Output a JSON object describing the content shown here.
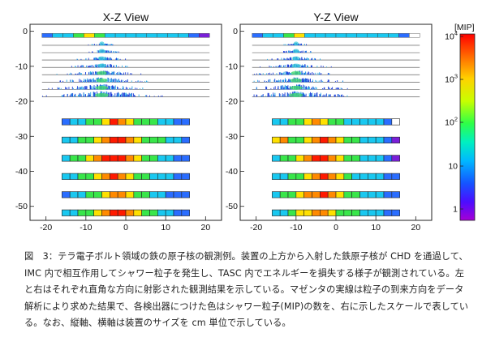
{
  "panels": [
    {
      "title": "X-Z View",
      "x_ticks": [
        "-20",
        "-10",
        "0",
        "10",
        "20"
      ],
      "y_ticks": [
        "0",
        "-10",
        "-20",
        "-30",
        "-40",
        "-50"
      ]
    },
    {
      "title": "Y-Z View",
      "x_ticks": [
        "-20",
        "-10",
        "0",
        "10",
        "20"
      ],
      "y_ticks": [
        "0",
        "-10",
        "-20",
        "-30",
        "-40",
        "-50"
      ]
    }
  ],
  "colorbar": {
    "unit": "[MIP]",
    "tick_labels": [
      {
        "base": "10",
        "exp": "4"
      },
      {
        "base": "10",
        "exp": "3"
      },
      {
        "base": "10",
        "exp": "2"
      },
      {
        "base": "10",
        "exp": ""
      },
      {
        "base": "1",
        "exp": ""
      }
    ],
    "colors": [
      "#ff0000",
      "#ff6600",
      "#ffcc00",
      "#ccff00",
      "#33ff33",
      "#00ff99",
      "#00ccff",
      "#0066ff",
      "#3300ff",
      "#9900cc"
    ]
  },
  "caption": "図　3：テラ電子ボルト領域の鉄の原子核の観測例。装置の上方から入射した鉄原子核が CHD を通過して、IMC 内で相互作用してシャワー粒子を発生し、TASC 内でエネルギーを損失する様子が観測されている。左と右はそれぞれ直角な方向に射影された観測結果を示している。マゼンタの実線は粒子の到来方向をデータ解析により求めた結果で、各検出器につけた色はシャワー粒子(MIP)の数を、右に示したスケールで表している。なお、縦軸、横軸は装置のサイズを cm 単位で示している。",
  "chart_data": [
    {
      "type": "heatmap",
      "title": "X-Z View",
      "xlim": [
        -24,
        24
      ],
      "ylim": [
        -54,
        2
      ],
      "x_ticks": [
        -20,
        -10,
        0,
        10,
        20
      ],
      "y_ticks": [
        0,
        -10,
        -20,
        -30,
        -40,
        -50
      ],
      "chd_row_colors": [
        "b",
        "c",
        "c",
        "g",
        "y",
        "g",
        "c",
        "c",
        "c",
        "c",
        "c",
        "c",
        "c",
        "c",
        "b",
        "v"
      ],
      "tasc_rows": [
        [
          "b",
          "c",
          "c",
          "g",
          "g",
          "y",
          "r",
          "o",
          "y",
          "g",
          "g",
          "g",
          "c",
          "c",
          "b",
          "b"
        ],
        [
          "c",
          "c",
          "g",
          "g",
          "y",
          "o",
          "r",
          "r",
          "o",
          "y",
          "g",
          "g",
          "g",
          "c",
          "c",
          "b"
        ],
        [
          "c",
          "g",
          "g",
          "y",
          "o",
          "r",
          "r",
          "r",
          "o",
          "y",
          "g",
          "g",
          "c",
          "c",
          "b",
          "b"
        ],
        [
          "c",
          "c",
          "g",
          "g",
          "y",
          "o",
          "r",
          "o",
          "y",
          "g",
          "g",
          "c",
          "c",
          "c",
          "b",
          "b"
        ],
        [
          "b",
          "c",
          "c",
          "g",
          "g",
          "y",
          "o",
          "o",
          "y",
          "g",
          "g",
          "c",
          "c",
          "b",
          "b",
          "b"
        ],
        [
          "c",
          "c",
          "g",
          "g",
          "y",
          "o",
          "r",
          "r",
          "o",
          "y",
          "g",
          "g",
          "c",
          "c",
          "b",
          "b"
        ]
      ]
    },
    {
      "type": "heatmap",
      "title": "Y-Z View",
      "xlim": [
        -24,
        24
      ],
      "ylim": [
        -54,
        2
      ],
      "x_ticks": [
        -20,
        -10,
        0,
        10,
        20
      ],
      "y_ticks": [
        0,
        -10,
        -20,
        -30,
        -40,
        -50
      ],
      "chd_row_colors": [
        "b",
        "c",
        "c",
        "g",
        "y",
        "c",
        "c",
        "c",
        "c",
        "c",
        "c",
        "c",
        "c",
        "c",
        "b",
        "w"
      ],
      "tasc_rows": [
        [
          "c",
          "c",
          "g",
          "g",
          "y",
          "o",
          "y",
          "g",
          "g",
          "c",
          "c",
          "c",
          "c",
          "c",
          "b",
          "w"
        ],
        [
          "y",
          "o",
          "g",
          "g",
          "y",
          "o",
          "r",
          "o",
          "y",
          "g",
          "g",
          "c",
          "c",
          "c",
          "b",
          "v"
        ],
        [
          "c",
          "g",
          "g",
          "y",
          "o",
          "r",
          "r",
          "o",
          "y",
          "g",
          "g",
          "c",
          "c",
          "c",
          "b",
          "v"
        ],
        [
          "c",
          "c",
          "g",
          "g",
          "y",
          "o",
          "r",
          "o",
          "y",
          "g",
          "c",
          "c",
          "c",
          "c",
          "b",
          "b"
        ],
        [
          "c",
          "g",
          "g",
          "y",
          "o",
          "o",
          "r",
          "o",
          "y",
          "g",
          "g",
          "c",
          "c",
          "c",
          "b",
          "b"
        ],
        [
          "c",
          "c",
          "g",
          "y",
          "y",
          "o",
          "o",
          "y",
          "g",
          "g",
          "g",
          "c",
          "c",
          "c",
          "b",
          "b"
        ]
      ]
    }
  ]
}
